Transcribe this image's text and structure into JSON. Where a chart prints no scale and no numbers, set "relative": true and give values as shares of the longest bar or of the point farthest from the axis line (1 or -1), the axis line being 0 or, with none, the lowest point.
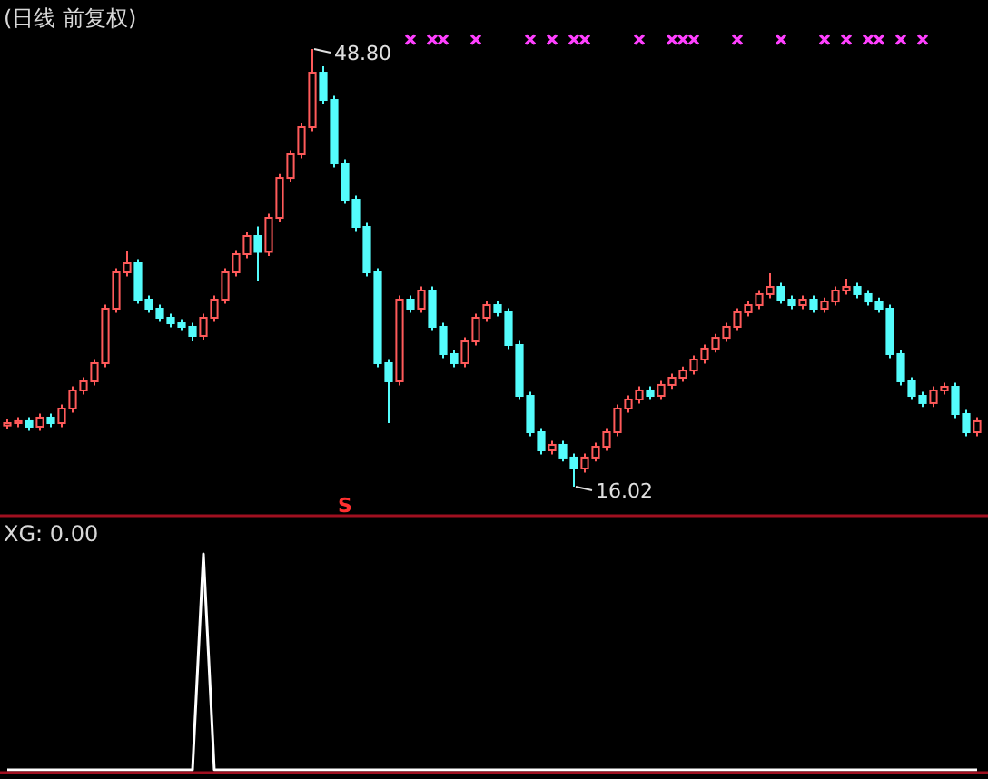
{
  "chart_data": [
    {
      "type": "candlestick",
      "title": "(日线 前复权)",
      "categories": [
        null,
        null,
        null,
        null,
        null,
        null,
        null,
        null,
        null,
        null,
        null,
        null,
        null,
        null,
        null,
        null,
        null,
        null,
        null,
        null,
        null,
        null,
        null,
        null,
        null,
        null,
        null,
        null,
        null,
        null,
        null,
        null,
        null,
        null,
        null,
        null,
        null,
        null,
        null,
        null,
        null,
        null,
        null,
        null,
        null,
        null,
        null,
        null,
        null,
        null,
        null,
        null,
        null,
        null,
        null,
        null,
        null,
        null,
        null,
        null,
        null,
        null,
        null,
        null,
        null,
        null,
        null,
        null,
        null,
        null,
        null,
        null,
        null,
        null,
        null,
        null,
        null,
        null,
        null,
        null,
        null,
        null,
        null,
        null,
        null,
        null,
        null,
        null,
        null,
        null
      ],
      "ohlc": [
        [
          20.6,
          21.08,
          20.3,
          20.78
        ],
        [
          20.78,
          21.22,
          20.48,
          20.92
        ],
        [
          20.92,
          21.22,
          20.21,
          20.51
        ],
        [
          20.51,
          21.49,
          20.21,
          21.19
        ],
        [
          21.19,
          21.49,
          20.48,
          20.78
        ],
        [
          20.78,
          22.17,
          20.48,
          21.87
        ],
        [
          21.87,
          23.53,
          21.57,
          23.23
        ],
        [
          23.23,
          24.21,
          22.93,
          23.91
        ],
        [
          23.91,
          25.57,
          23.61,
          25.27
        ],
        [
          25.27,
          29.65,
          24.97,
          29.35
        ],
        [
          29.35,
          32.37,
          29.05,
          32.07
        ],
        [
          32.07,
          33.7,
          31.77,
          32.75
        ],
        [
          32.75,
          33.05,
          29.73,
          30.03
        ],
        [
          30.03,
          30.33,
          29.05,
          29.35
        ],
        [
          29.35,
          29.65,
          28.37,
          28.67
        ],
        [
          28.67,
          28.97,
          27.96,
          28.26
        ],
        [
          28.26,
          28.56,
          27.69,
          27.99
        ],
        [
          27.99,
          28.29,
          26.9,
          27.31
        ],
        [
          27.31,
          28.97,
          27.01,
          28.67
        ],
        [
          28.67,
          30.33,
          28.37,
          30.03
        ],
        [
          30.03,
          32.37,
          29.73,
          32.07
        ],
        [
          32.07,
          33.73,
          31.77,
          33.43
        ],
        [
          33.43,
          35.09,
          33.13,
          34.79
        ],
        [
          34.79,
          35.5,
          31.4,
          33.6
        ],
        [
          33.6,
          36.45,
          33.3,
          36.15
        ],
        [
          36.15,
          39.44,
          35.85,
          39.14
        ],
        [
          39.14,
          41.21,
          38.84,
          40.91
        ],
        [
          40.91,
          43.25,
          40.61,
          42.95
        ],
        [
          42.95,
          48.8,
          42.65,
          47.03
        ],
        [
          47.03,
          47.5,
          44.69,
          44.99
        ],
        [
          44.99,
          45.29,
          39.93,
          40.23
        ],
        [
          40.23,
          40.53,
          37.21,
          37.51
        ],
        [
          37.51,
          37.81,
          35.17,
          35.47
        ],
        [
          35.47,
          35.77,
          31.77,
          32.07
        ],
        [
          32.07,
          32.37,
          24.97,
          25.27
        ],
        [
          25.27,
          25.57,
          20.78,
          23.91
        ],
        [
          23.91,
          30.33,
          23.61,
          30.03
        ],
        [
          30.03,
          30.33,
          29.05,
          29.35
        ],
        [
          29.35,
          31.01,
          29.05,
          30.71
        ],
        [
          30.71,
          31.01,
          27.69,
          27.99
        ],
        [
          27.99,
          28.29,
          25.65,
          25.95
        ],
        [
          25.95,
          26.25,
          24.97,
          25.27
        ],
        [
          25.27,
          27.2,
          24.97,
          26.9
        ],
        [
          26.9,
          28.97,
          26.6,
          28.67
        ],
        [
          28.67,
          29.92,
          28.37,
          29.62
        ],
        [
          29.62,
          29.92,
          28.78,
          29.08
        ],
        [
          29.08,
          29.38,
          26.33,
          26.63
        ],
        [
          26.63,
          26.93,
          22.52,
          22.82
        ],
        [
          22.82,
          23.12,
          19.8,
          20.1
        ],
        [
          20.1,
          20.4,
          18.44,
          18.74
        ],
        [
          18.74,
          19.45,
          18.44,
          19.15
        ],
        [
          19.15,
          19.45,
          17.9,
          18.2
        ],
        [
          18.2,
          18.5,
          16.02,
          17.38
        ],
        [
          17.38,
          18.5,
          17.08,
          18.2
        ],
        [
          18.2,
          19.31,
          17.9,
          19.01
        ],
        [
          19.01,
          20.4,
          18.71,
          20.1
        ],
        [
          20.1,
          22.17,
          19.8,
          21.87
        ],
        [
          21.87,
          22.85,
          21.57,
          22.55
        ],
        [
          22.55,
          23.53,
          22.25,
          23.23
        ],
        [
          23.23,
          23.53,
          22.52,
          22.82
        ],
        [
          22.82,
          23.94,
          22.52,
          23.64
        ],
        [
          23.64,
          24.48,
          23.34,
          24.18
        ],
        [
          24.18,
          25.02,
          23.88,
          24.72
        ],
        [
          24.72,
          25.84,
          24.42,
          25.54
        ],
        [
          25.54,
          26.66,
          25.24,
          26.36
        ],
        [
          26.36,
          27.47,
          26.06,
          27.17
        ],
        [
          27.17,
          28.29,
          26.87,
          27.99
        ],
        [
          27.99,
          29.38,
          27.69,
          29.08
        ],
        [
          29.08,
          29.92,
          28.78,
          29.62
        ],
        [
          29.62,
          30.74,
          29.32,
          30.44
        ],
        [
          30.44,
          32.0,
          30.14,
          30.98
        ],
        [
          30.98,
          31.28,
          29.73,
          30.03
        ],
        [
          30.03,
          30.33,
          29.32,
          29.62
        ],
        [
          29.62,
          30.33,
          29.32,
          30.03
        ],
        [
          30.03,
          30.33,
          29.05,
          29.35
        ],
        [
          29.35,
          30.19,
          29.05,
          29.89
        ],
        [
          29.89,
          31.01,
          29.59,
          30.71
        ],
        [
          30.71,
          31.6,
          30.41,
          30.98
        ],
        [
          30.98,
          31.28,
          30.14,
          30.44
        ],
        [
          30.44,
          30.74,
          29.59,
          29.89
        ],
        [
          29.89,
          30.19,
          29.05,
          29.35
        ],
        [
          29.35,
          29.65,
          25.65,
          25.95
        ],
        [
          25.95,
          26.25,
          23.61,
          23.91
        ],
        [
          23.91,
          24.21,
          22.52,
          22.82
        ],
        [
          22.82,
          23.12,
          21.98,
          22.28
        ],
        [
          22.28,
          23.53,
          21.98,
          23.23
        ],
        [
          23.23,
          23.8,
          22.93,
          23.5
        ],
        [
          23.5,
          23.8,
          21.16,
          21.46
        ],
        [
          21.46,
          21.76,
          19.8,
          20.1
        ],
        [
          20.1,
          21.22,
          19.8,
          20.92
        ]
      ],
      "series": [
        {
          "type": "scatter",
          "marker": "cross",
          "color": "#ff40ff",
          "values": [
            null,
            null,
            null,
            null,
            null,
            null,
            null,
            null,
            null,
            null,
            null,
            null,
            null,
            null,
            null,
            null,
            null,
            null,
            null,
            null,
            null,
            null,
            null,
            null,
            null,
            null,
            null,
            null,
            null,
            null,
            null,
            null,
            null,
            null,
            null,
            null,
            null,
            49.5,
            null,
            49.5,
            49.5,
            null,
            null,
            49.5,
            null,
            null,
            null,
            null,
            49.5,
            null,
            49.5,
            null,
            49.5,
            49.5,
            null,
            null,
            null,
            null,
            49.5,
            null,
            null,
            49.5,
            49.5,
            49.5,
            null,
            null,
            null,
            49.5,
            null,
            null,
            null,
            49.5,
            null,
            null,
            null,
            49.5,
            null,
            49.5,
            null,
            49.5,
            49.5,
            null,
            49.5,
            null,
            49.5,
            null,
            null,
            null,
            null,
            null
          ]
        }
      ],
      "annotations": [
        "48.80",
        "16.02",
        "S"
      ]
    },
    {
      "type": "line",
      "title": "XG: 0.00",
      "relative": true,
      "color": "#ffffff",
      "categories": [
        null,
        null,
        null,
        null,
        null,
        null,
        null,
        null,
        null,
        null,
        null,
        null,
        null,
        null,
        null,
        null,
        null,
        null,
        null,
        null,
        null,
        null,
        null,
        null,
        null,
        null,
        null,
        null,
        null,
        null,
        null,
        null,
        null,
        null,
        null,
        null,
        null,
        null,
        null,
        null,
        null,
        null,
        null,
        null,
        null,
        null,
        null,
        null,
        null,
        null,
        null,
        null,
        null,
        null,
        null,
        null,
        null,
        null,
        null,
        null,
        null,
        null,
        null,
        null,
        null,
        null,
        null,
        null,
        null,
        null,
        null,
        null,
        null,
        null,
        null,
        null,
        null,
        null,
        null,
        null,
        null,
        null,
        null,
        null,
        null,
        null,
        null,
        null,
        null,
        null
      ],
      "values": [
        0,
        0,
        0,
        0,
        0,
        0,
        0,
        0,
        0,
        0,
        0,
        0,
        0,
        0,
        0,
        0,
        0,
        0,
        1,
        0,
        0,
        0,
        0,
        0,
        0,
        0,
        0,
        0,
        0,
        0,
        0,
        0,
        0,
        0,
        0,
        0,
        0,
        0,
        0,
        0,
        0,
        0,
        0,
        0,
        0,
        0,
        0,
        0,
        0,
        0,
        0,
        0,
        0,
        0,
        0,
        0,
        0,
        0,
        0,
        0,
        0,
        0,
        0,
        0,
        0,
        0,
        0,
        0,
        0,
        0,
        0,
        0,
        0,
        0,
        0,
        0,
        0,
        0,
        0,
        0,
        0,
        0,
        0,
        0,
        0,
        0,
        0,
        0,
        0,
        0
      ]
    }
  ]
}
